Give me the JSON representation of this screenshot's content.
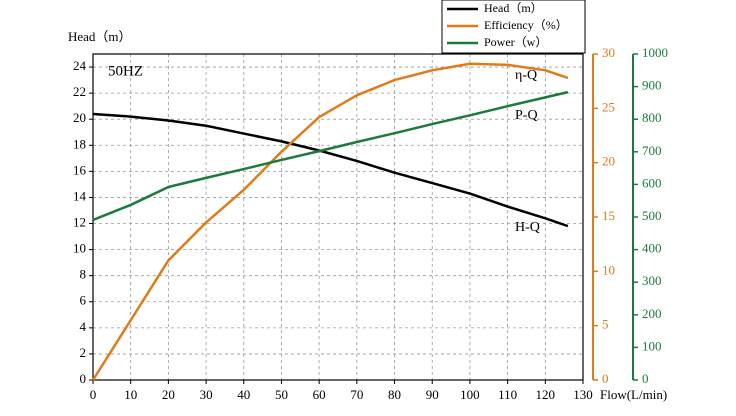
{
  "chart_data": {
    "type": "line",
    "xlabel": "Flow(L/min)",
    "ylabel": "Head（m）",
    "x": [
      0,
      10,
      20,
      30,
      40,
      50,
      60,
      70,
      80,
      90,
      100,
      110,
      120,
      126
    ],
    "xlim": [
      0,
      130
    ],
    "xticks": [
      0,
      10,
      20,
      30,
      40,
      50,
      60,
      70,
      80,
      90,
      100,
      110,
      120,
      130
    ],
    "ylim": [
      0,
      25
    ],
    "yticks": [
      0,
      2,
      4,
      6,
      8,
      10,
      12,
      14,
      16,
      18,
      20,
      22,
      24
    ],
    "y2lim": [
      0,
      30
    ],
    "y2ticks": [
      0,
      5,
      10,
      15,
      20,
      25,
      30
    ],
    "y3lim": [
      0,
      1000
    ],
    "y3ticks": [
      0,
      100,
      200,
      300,
      400,
      500,
      600,
      700,
      800,
      900,
      1000
    ],
    "grid": true,
    "legend": "top-right",
    "series": [
      {
        "name": "Head（m）",
        "color": "#000000",
        "axis": "y",
        "values": [
          20.4,
          20.2,
          19.9,
          19.5,
          18.9,
          18.3,
          17.6,
          16.8,
          15.9,
          15.1,
          14.3,
          13.3,
          12.4,
          11.8
        ]
      },
      {
        "name": "Efficiency（%）",
        "color": "#e07b1a",
        "axis": "y2",
        "values": [
          0,
          5.5,
          11,
          14.5,
          17.5,
          21,
          24.2,
          26.2,
          27.6,
          28.5,
          29.1,
          29,
          28.5,
          27.8
        ]
      },
      {
        "name": "Power（w）",
        "color": "#1e7a3c",
        "axis": "y3",
        "values": [
          491,
          537,
          592,
          620,
          647,
          675,
          702,
          730,
          757,
          785,
          812,
          840,
          867,
          883
        ]
      }
    ],
    "annotations": [
      "50HZ",
      "η-Q",
      "P-Q",
      "H-Q"
    ]
  }
}
